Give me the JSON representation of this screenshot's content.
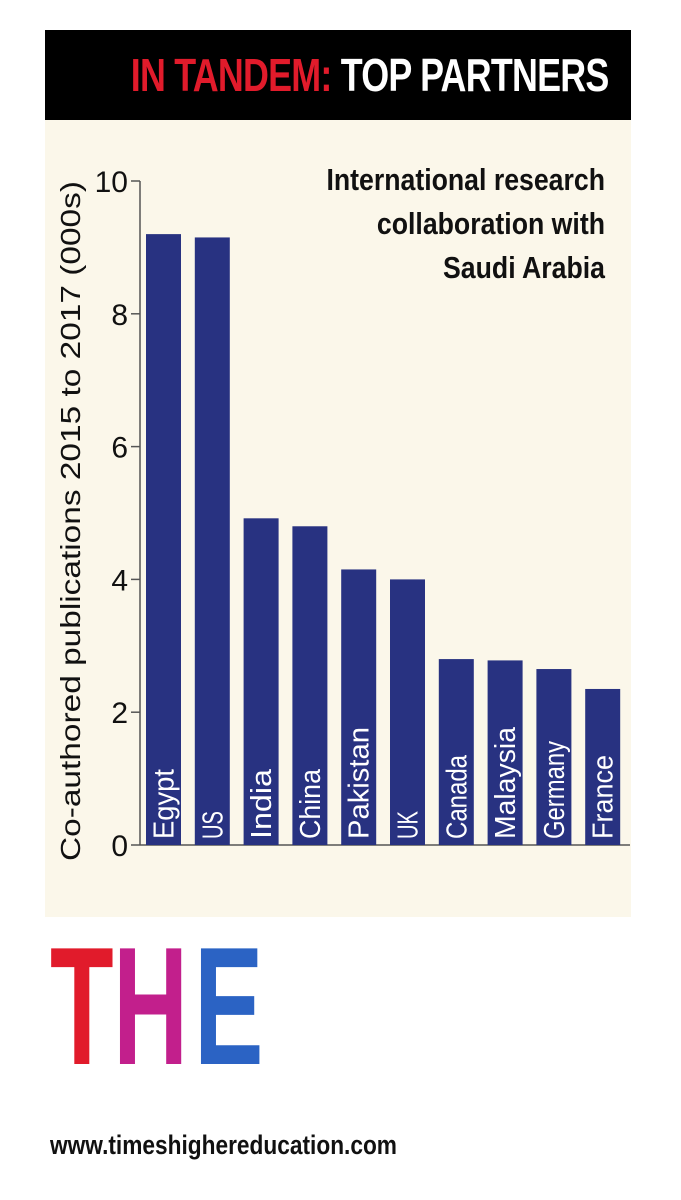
{
  "header": {
    "red_text": "IN TANDEM:",
    "white_text": "TOP PARTNERS"
  },
  "colors": {
    "bar": "#283281",
    "header_red": "#e11b2b",
    "panel_bg": "#fbf7ea"
  },
  "chart_data": {
    "type": "bar",
    "title": "International research collaboration with Saudi Arabia",
    "ylabel": "Co-authored publications 2015 to 2017 (000s)",
    "xlabel": "",
    "ylim": [
      0,
      10
    ],
    "yticks": [
      "0",
      "2",
      "4",
      "6",
      "8",
      "10"
    ],
    "categories": [
      "Egypt",
      "US",
      "India",
      "China",
      "Pakistan",
      "UK",
      "Canada",
      "Malaysia",
      "Germany",
      "France"
    ],
    "values": [
      9.2,
      9.15,
      4.92,
      4.8,
      4.15,
      4.0,
      2.8,
      2.78,
      2.65,
      2.35
    ],
    "grid": false,
    "legend": "none"
  },
  "logo": {
    "letters": [
      "T",
      "H",
      "E"
    ]
  },
  "footer": {
    "url": "www.timeshighereducation.com"
  }
}
